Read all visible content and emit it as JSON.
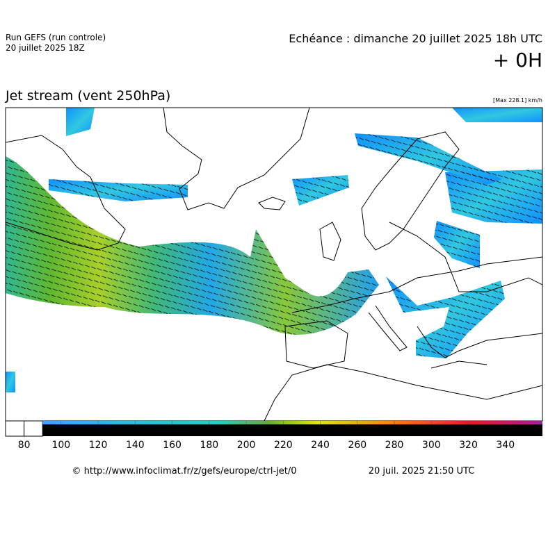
{
  "header": {
    "run": "Run GEFS (run controle)",
    "run_date": "20 juillet 2025 18Z",
    "valid": "Echéance : dimanche 20 juillet 2025 18h UTC",
    "lead": "+ 0H",
    "title": "Jet stream (vent 250hPa)",
    "max": "[Max 228.1] km/h"
  },
  "colorbar": {
    "lim": [
      70,
      360
    ],
    "ticks": [
      80,
      100,
      120,
      140,
      160,
      180,
      200,
      220,
      240,
      260,
      280,
      300,
      320,
      340
    ]
  },
  "footer": {
    "source": "© http://www.infoclimat.fr/z/gefs/europe/ctrl-jet/0",
    "generated": "20 juil. 2025 21:50 UTC"
  }
}
